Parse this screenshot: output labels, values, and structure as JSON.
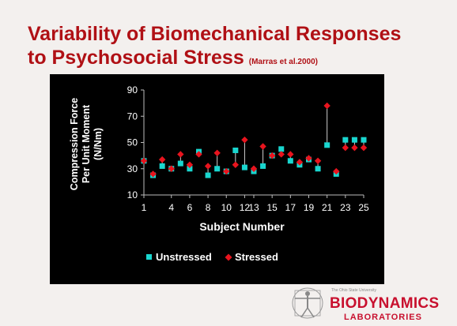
{
  "slide": {
    "title_line1": "Variability of Biomechanical Responses",
    "title_line2": "to Psychosocial Stress",
    "citation": "(Marras et al.2000)"
  },
  "logo": {
    "small_text": "The Ohio State University",
    "name": "BIODYNAMICS",
    "sub": "LABORATORIES"
  },
  "colors": {
    "title": "#b01015",
    "unstressed": "#19d6cf",
    "stressed": "#e8141e",
    "panel_bg": "#000000"
  },
  "chart_data": {
    "type": "scatter",
    "ylabel_lines": [
      "Compression Force",
      "Per Unit Moment",
      "(N/Nm)"
    ],
    "xlabel": "Subject Number",
    "ylim": [
      10,
      90
    ],
    "yticks": [
      10,
      30,
      50,
      70,
      90
    ],
    "xlim": [
      1,
      25
    ],
    "xticks": [
      1,
      4,
      6,
      8,
      10,
      12,
      13,
      15,
      17,
      19,
      21,
      23,
      25
    ],
    "grid": false,
    "legend_position": "bottom",
    "x": [
      1,
      2,
      3,
      4,
      5,
      6,
      7,
      8,
      9,
      10,
      11,
      12,
      13,
      14,
      15,
      16,
      17,
      18,
      19,
      20,
      21,
      22,
      23,
      24,
      25
    ],
    "series": [
      {
        "name": "Unstressed",
        "marker": "square",
        "values": [
          36,
          25,
          32,
          30,
          34,
          30,
          43,
          25,
          30,
          28,
          44,
          31,
          28,
          32,
          40,
          45,
          36,
          33,
          37,
          30,
          48,
          26,
          52,
          52,
          52
        ]
      },
      {
        "name": "Stressed",
        "marker": "diamond",
        "values": [
          36,
          26,
          37,
          30,
          41,
          33,
          41,
          32,
          42,
          28,
          33,
          52,
          30,
          47,
          40,
          41,
          41,
          35,
          38,
          36,
          78,
          28,
          46,
          46,
          46
        ]
      }
    ]
  }
}
